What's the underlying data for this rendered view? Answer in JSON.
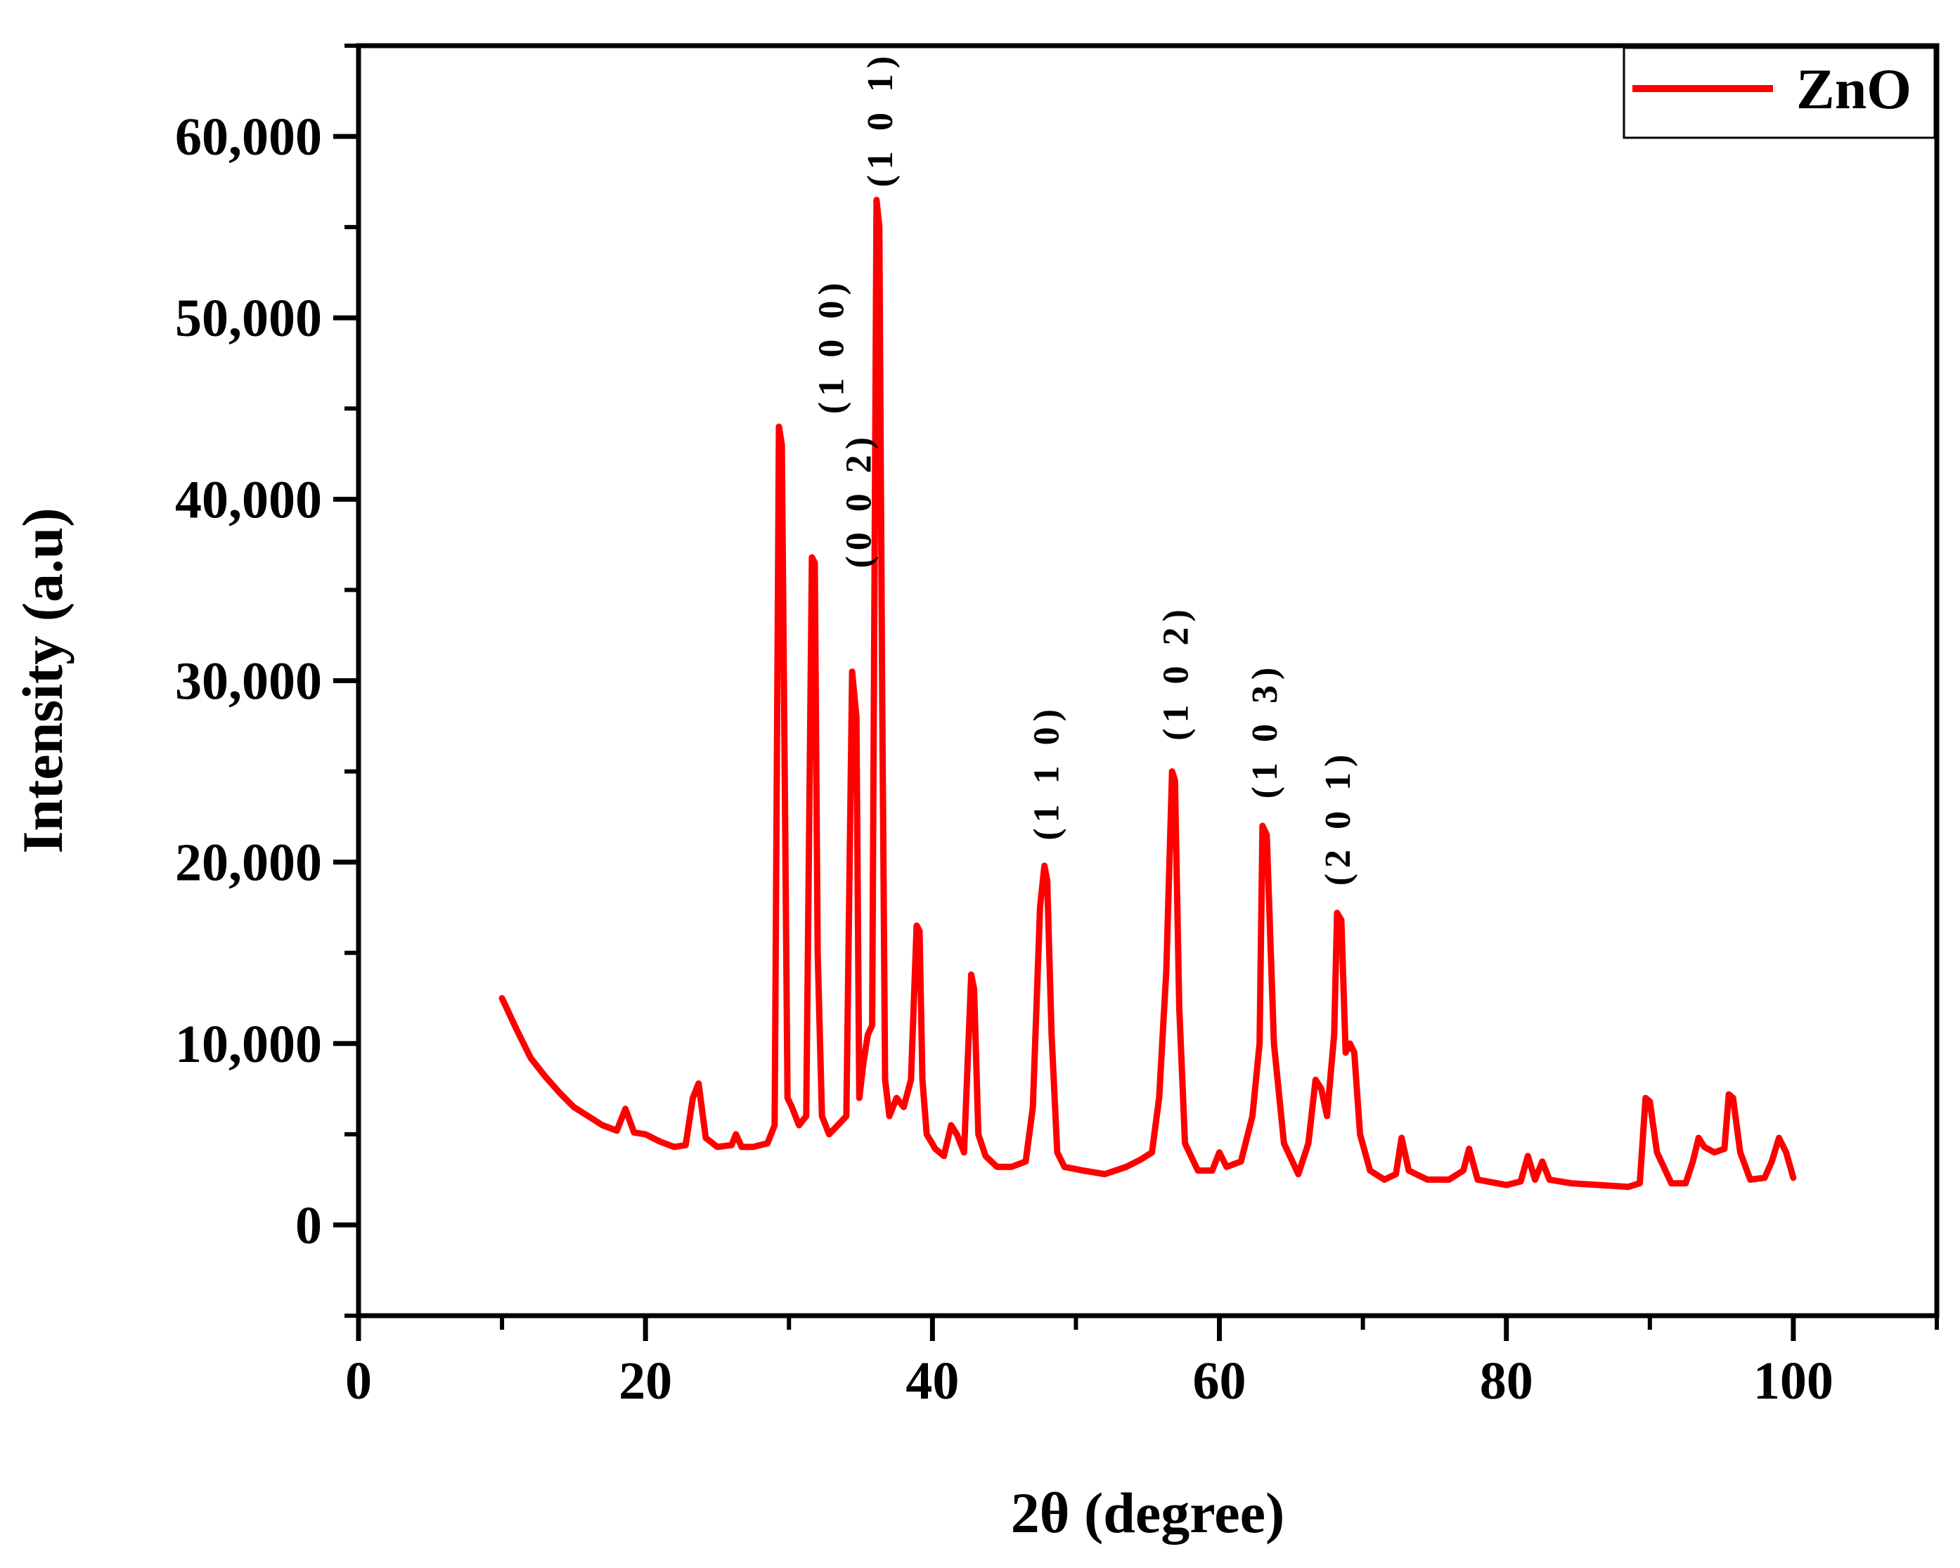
{
  "chart_data": {
    "type": "line",
    "title": "",
    "xlabel": "2θ (degree)",
    "ylabel": "Intensity (a.u)",
    "xlim": [
      0,
      110
    ],
    "ylim": [
      -5000,
      65000
    ],
    "xticks": [
      0,
      20,
      40,
      60,
      80,
      100
    ],
    "xtick_labels": [
      "0",
      "20",
      "40",
      "60",
      "80",
      "100"
    ],
    "yticks": [
      0,
      10000,
      20000,
      30000,
      40000,
      50000,
      60000
    ],
    "ytick_labels": [
      "0",
      "10,000",
      "20,000",
      "30,000",
      "40,000",
      "50,000",
      "60,000"
    ],
    "grid": false,
    "legend": {
      "position": "top-right",
      "entries": [
        "ZnO"
      ]
    },
    "series": [
      {
        "name": "ZnO",
        "color": "#ff0000",
        "x": [
          10,
          11,
          12,
          13,
          14,
          15,
          16,
          17,
          18,
          18.6,
          19.2,
          20,
          21,
          22,
          22.8,
          23.3,
          23.7,
          24.2,
          25,
          26,
          26.3,
          26.7,
          27.5,
          28.5,
          29.0,
          29.3,
          29.5,
          29.7,
          29.9,
          30.2,
          30.7,
          31.2,
          31.6,
          31.8,
          32.0,
          32.3,
          32.8,
          33.4,
          34.0,
          34.4,
          34.7,
          34.9,
          35.2,
          35.5,
          35.8,
          36.1,
          36.3,
          36.5,
          36.7,
          37.0,
          37.5,
          38.0,
          38.5,
          38.9,
          39.1,
          39.3,
          39.6,
          40.2,
          40.8,
          41.3,
          41.7,
          42.2,
          42.7,
          42.9,
          43.2,
          43.7,
          44.5,
          45.5,
          46.5,
          47.0,
          47.5,
          47.8,
          48.0,
          48.3,
          48.7,
          49.2,
          50.5,
          52.0,
          53.5,
          54.5,
          55.3,
          55.8,
          56.3,
          56.7,
          56.9,
          57.2,
          57.6,
          58.5,
          59.5,
          60.0,
          60.5,
          61.5,
          62.3,
          62.8,
          63.0,
          63.3,
          63.8,
          64.5,
          65.5,
          66.2,
          66.7,
          67.1,
          67.5,
          68.0,
          68.2,
          68.5,
          68.8,
          69.1,
          69.4,
          69.8,
          70.5,
          71.5,
          72.3,
          72.7,
          73.2,
          74.5,
          76.0,
          77.0,
          77.4,
          78.0,
          80.0,
          81.0,
          81.5,
          82.0,
          82.5,
          83.0,
          84.5,
          86.5,
          88.5,
          89.3,
          89.7,
          90.0,
          90.5,
          91.5,
          92.5,
          93.0,
          93.4,
          93.8,
          94.5,
          95.2,
          95.5,
          95.8,
          96.3,
          97.0,
          98.0,
          98.5,
          99.0,
          99.5,
          100.0
        ],
        "values": [
          12500,
          10800,
          9200,
          8200,
          7300,
          6500,
          6000,
          5500,
          5200,
          6400,
          5100,
          5000,
          4600,
          4300,
          4400,
          7000,
          7800,
          4800,
          4300,
          4400,
          5000,
          4300,
          4300,
          4500,
          5500,
          44000,
          43000,
          25000,
          7000,
          6500,
          5500,
          6000,
          36800,
          36500,
          15000,
          6000,
          5000,
          5500,
          6000,
          30500,
          28000,
          7000,
          9000,
          10500,
          11000,
          56500,
          55000,
          29000,
          8000,
          6000,
          7000,
          6500,
          8000,
          16500,
          16200,
          8000,
          5000,
          4200,
          3800,
          5500,
          5000,
          4000,
          13800,
          13000,
          5000,
          3800,
          3200,
          3200,
          3500,
          6500,
          17500,
          19800,
          19000,
          10500,
          4000,
          3200,
          3000,
          2800,
          3200,
          3600,
          4000,
          7000,
          14000,
          25000,
          24500,
          12000,
          4500,
          3000,
          3000,
          4000,
          3200,
          3500,
          6000,
          10000,
          22000,
          21500,
          10000,
          4500,
          2800,
          4500,
          8000,
          7500,
          6000,
          10500,
          17200,
          16800,
          9500,
          10000,
          9500,
          5000,
          3000,
          2500,
          2800,
          4800,
          3000,
          2500,
          2500,
          3000,
          4200,
          2500,
          2200,
          2400,
          3800,
          2500,
          3500,
          2500,
          2300,
          2200,
          2100,
          2300,
          7000,
          6800,
          4000,
          2300,
          2300,
          3500,
          4800,
          4300,
          4000,
          4200,
          7200,
          7000,
          4000,
          2500,
          2600,
          3500,
          4800,
          4000,
          2600
        ]
      }
    ],
    "annotations": [
      {
        "text": "(1 0 1)",
        "x": 36.4,
        "y": 56500
      },
      {
        "text": "(1 0 0)",
        "x": 33.0,
        "y": 44000
      },
      {
        "text": "(0 0 2)",
        "x": 34.9,
        "y": 35500
      },
      {
        "text": "(1 1 0)",
        "x": 48.0,
        "y": 20500
      },
      {
        "text": "(1 0 2)",
        "x": 57.0,
        "y": 26000
      },
      {
        "text": "(1 0 3)",
        "x": 63.2,
        "y": 22800
      },
      {
        "text": "(2 0 1)",
        "x": 68.3,
        "y": 18000
      }
    ]
  }
}
